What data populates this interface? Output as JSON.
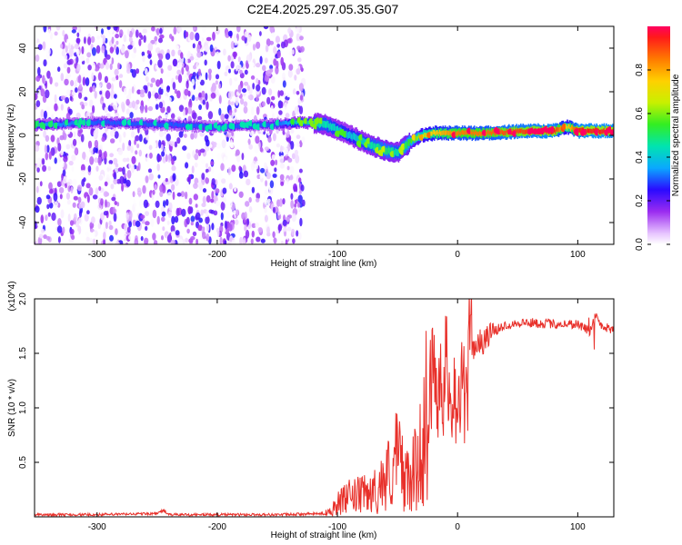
{
  "figure": {
    "title": "C2E4.2025.297.05.35.G07"
  },
  "chart_data": [
    {
      "type": "heatmap",
      "xlabel": "Height of straight line (km)",
      "ylabel": "Frequency (Hz)",
      "xlim": [
        -352,
        130
      ],
      "ylim": [
        -50,
        50
      ],
      "x_ticks": [
        -300,
        -200,
        -100,
        0,
        100
      ],
      "y_ticks": [
        -40,
        -20,
        0,
        20,
        40
      ],
      "colorbar": {
        "label": "Normalized spectral amplitude",
        "range": [
          0,
          1
        ],
        "ticks": [
          0.0,
          0.2,
          0.4,
          0.6,
          0.8
        ],
        "tick_labels": [
          "0.0",
          "0.2",
          "0.4",
          "0.6",
          "0.8"
        ]
      },
      "ridge": {
        "height_km": [
          -340,
          -300,
          -250,
          -200,
          -150,
          -130,
          -110,
          -90,
          -75,
          -60,
          -50,
          -40,
          -30,
          -20,
          -10,
          0,
          20,
          40,
          60,
          80,
          90,
          100,
          130
        ],
        "frequency_hz": [
          5,
          6,
          5,
          4,
          5,
          6,
          5,
          0,
          -4,
          -7,
          -8,
          -3,
          0,
          1,
          1,
          1,
          1,
          1.5,
          2,
          2,
          4,
          2,
          2
        ],
        "peak_amplitude": [
          0.35,
          0.3,
          0.3,
          0.3,
          0.3,
          0.45,
          0.45,
          0.4,
          0.45,
          0.5,
          0.45,
          0.55,
          0.65,
          0.75,
          0.8,
          0.85,
          0.85,
          0.9,
          0.92,
          0.95,
          0.7,
          0.95,
          0.95
        ]
      },
      "noise_region_km": [
        -352,
        -128
      ]
    },
    {
      "type": "line",
      "xlabel": "Height of straight line (km)",
      "ylabel": "SNR (10 * v/v)",
      "y_scale_label": "(x10^4)",
      "xlim": [
        -352,
        130
      ],
      "ylim": [
        0,
        2.0
      ],
      "x_ticks": [
        -300,
        -200,
        -100,
        0,
        100
      ],
      "y_ticks": [
        0.5,
        1.0,
        1.5,
        2.0
      ],
      "y_tick_labels": [
        "0.5",
        "1.0",
        "1.5",
        "2.0"
      ],
      "series": [
        {
          "color": "#e8302a",
          "x": [
            -352,
            -300,
            -250,
            -245,
            -240,
            -200,
            -150,
            -110,
            -100,
            -90,
            -80,
            -70,
            -60,
            -50,
            -45,
            -40,
            -30,
            -25,
            -20,
            -15,
            -10,
            -5,
            0,
            5,
            10,
            15,
            20,
            25,
            30,
            40,
            50,
            60,
            80,
            100,
            110,
            115,
            120,
            130
          ],
          "y": [
            0.02,
            0.02,
            0.03,
            0.06,
            0.02,
            0.02,
            0.02,
            0.03,
            0.12,
            0.18,
            0.2,
            0.22,
            0.35,
            0.55,
            0.42,
            0.3,
            0.6,
            1.1,
            1.25,
            1.3,
            1.3,
            1.25,
            1.05,
            1.15,
            1.45,
            1.6,
            1.6,
            1.65,
            1.7,
            1.76,
            1.78,
            1.78,
            1.77,
            1.77,
            1.7,
            1.85,
            1.75,
            1.72
          ]
        }
      ]
    }
  ]
}
